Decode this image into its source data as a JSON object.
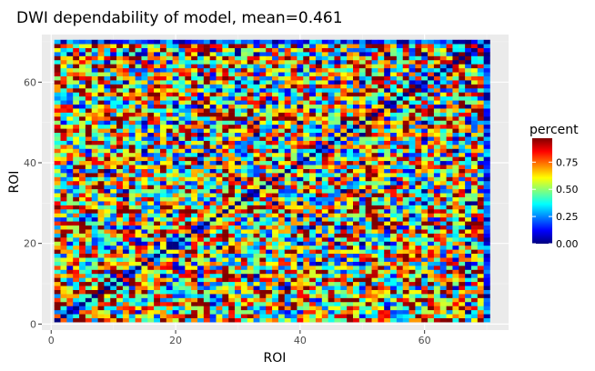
{
  "chart_data": {
    "type": "heatmap",
    "title": "DWI dependability of model, mean=0.461",
    "xlabel": "ROI",
    "ylabel": "ROI",
    "n": 70,
    "diagonal_value": 0,
    "mean": 0.461,
    "xlim": [
      -1.5,
      73.5
    ],
    "ylim": [
      -1.5,
      71.8
    ],
    "x_ticks": [
      0,
      20,
      40,
      60
    ],
    "y_ticks": [
      0,
      20,
      40,
      60
    ],
    "x_tick_labels": [
      "0",
      "20",
      "40",
      "60"
    ],
    "y_tick_labels": [
      "0",
      "20",
      "40",
      "60"
    ],
    "legend": {
      "title": "percent",
      "placement": "right",
      "ticks": [
        0.0,
        0.25,
        0.5,
        0.75
      ],
      "tick_labels": [
        "0.00",
        "0.25",
        "0.50",
        "0.75"
      ],
      "range": [
        0,
        0.97
      ]
    },
    "colors": {
      "panel_bg": "#ebebeb",
      "grid_major": "#ffffff",
      "colormap": [
        "#00007f",
        "#0000ff",
        "#007fff",
        "#00ffff",
        "#7fff7f",
        "#ffff00",
        "#ff7f00",
        "#ff0000",
        "#7f0000"
      ]
    }
  }
}
